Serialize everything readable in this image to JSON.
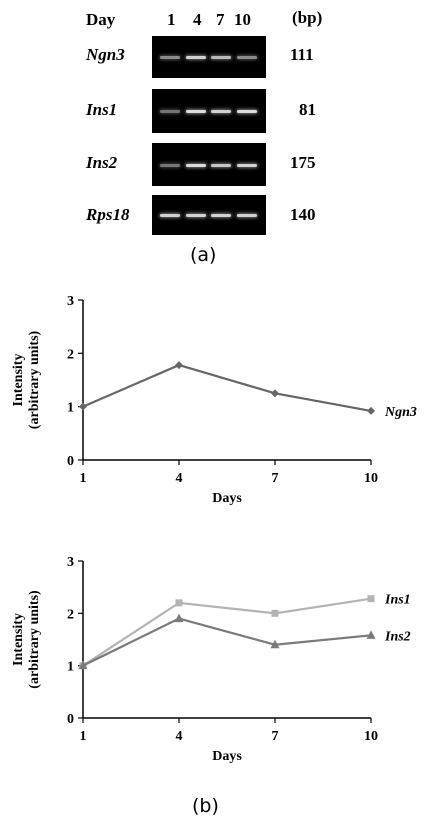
{
  "panel_a": {
    "day_label": "Day",
    "days": [
      "1",
      "4",
      "7",
      "10"
    ],
    "bp_label": "(bp)",
    "rows": [
      {
        "gene": "Ngn3",
        "bp": "111",
        "band_intensity": [
          0.6,
          0.9,
          0.8,
          0.6
        ]
      },
      {
        "gene": "Ins1",
        "bp": "81",
        "band_intensity": [
          0.5,
          0.95,
          0.9,
          0.95
        ]
      },
      {
        "gene": "Ins2",
        "bp": "175",
        "band_intensity": [
          0.5,
          0.95,
          0.85,
          0.9
        ]
      },
      {
        "gene": "Rps18",
        "bp": "140",
        "band_intensity": [
          0.9,
          0.9,
          0.9,
          0.9
        ]
      }
    ],
    "caption": "(a)"
  },
  "panel_b_caption": "(b)",
  "chart_data": [
    {
      "type": "line",
      "categories": [
        "1",
        "4",
        "7",
        "10"
      ],
      "series": [
        {
          "name": "Ngn3",
          "values": [
            1.0,
            1.78,
            1.25,
            0.92
          ],
          "color": "#666666",
          "marker": "diamond"
        }
      ],
      "xlabel": "Days",
      "ylabel": "Intensity\n(arbitrary units)",
      "ylabel_lines": [
        "Intensity",
        "(arbitrary units)"
      ],
      "yticks": [
        "0",
        "1",
        "2",
        "3"
      ],
      "ylim": [
        0,
        3
      ]
    },
    {
      "type": "line",
      "categories": [
        "1",
        "4",
        "7",
        "10"
      ],
      "series": [
        {
          "name": "Ins1",
          "values": [
            1.0,
            2.2,
            2.0,
            2.28
          ],
          "color": "#b3b3b3",
          "marker": "square"
        },
        {
          "name": "Ins2",
          "values": [
            1.0,
            1.9,
            1.4,
            1.58
          ],
          "color": "#7a7a7a",
          "marker": "triangle"
        }
      ],
      "xlabel": "Days",
      "ylabel_lines": [
        "Intensity",
        "(arbitrary units)"
      ],
      "yticks": [
        "0",
        "1",
        "2",
        "3"
      ],
      "ylim": [
        0,
        3
      ]
    }
  ]
}
